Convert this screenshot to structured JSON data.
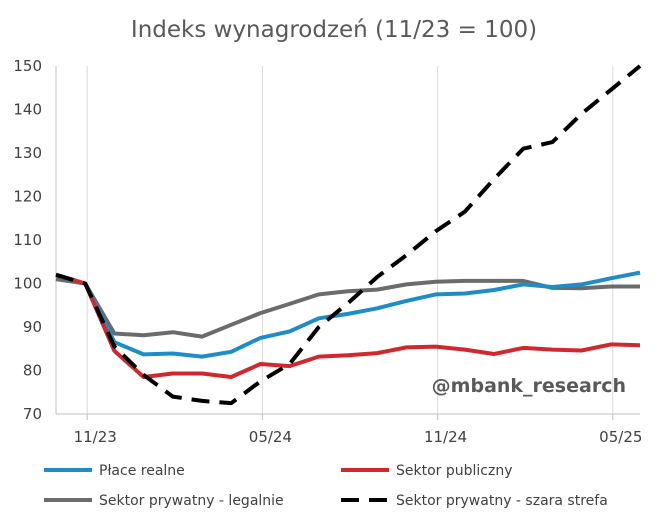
{
  "chart_data": {
    "type": "line",
    "title": "Indeks wynagrodzeń (11/23 = 100)",
    "watermark": "@mbank_research",
    "xlabel": "",
    "ylabel": "",
    "ylim": [
      70,
      150
    ],
    "yticks": [
      70,
      80,
      90,
      100,
      110,
      120,
      130,
      140,
      150
    ],
    "x": [
      "10/23",
      "11/23",
      "12/23",
      "01/24",
      "02/24",
      "03/24",
      "04/24",
      "05/24",
      "06/24",
      "07/24",
      "08/24",
      "09/24",
      "10/24",
      "11/24",
      "12/24",
      "01/25",
      "02/25",
      "03/25",
      "04/25",
      "05/25",
      "06/25"
    ],
    "xtick_labels": [
      {
        "index": 1,
        "label": "11/23"
      },
      {
        "index": 7,
        "label": "05/24"
      },
      {
        "index": 13,
        "label": "11/24"
      },
      {
        "index": 19,
        "label": "05/25"
      }
    ],
    "legend_position": "bottom",
    "grid": "vertical",
    "series": [
      {
        "name": "Płace realne",
        "color": "#1F8DC5",
        "dash": "solid",
        "values": [
          102.0,
          100.0,
          86.5,
          83.7,
          83.9,
          83.2,
          84.3,
          87.5,
          89.0,
          92.0,
          93.0,
          94.3,
          96.0,
          97.5,
          97.7,
          98.5,
          99.8,
          99.2,
          99.8,
          101.2,
          102.5
        ]
      },
      {
        "name": "Sektor publiczny",
        "color": "#D1282D",
        "dash": "solid",
        "values": [
          102.0,
          100.0,
          84.5,
          78.5,
          79.3,
          79.3,
          78.5,
          81.5,
          81.0,
          83.2,
          83.5,
          84.0,
          85.3,
          85.5,
          84.8,
          83.8,
          85.2,
          84.8,
          84.6,
          86.0,
          85.8
        ]
      },
      {
        "name": "Sektor prywatny - legalnie",
        "color": "#6B6B6B",
        "dash": "solid",
        "values": [
          101.0,
          100.0,
          88.5,
          88.1,
          88.8,
          87.8,
          90.5,
          93.2,
          95.3,
          97.5,
          98.2,
          98.6,
          99.8,
          100.4,
          100.6,
          100.6,
          100.6,
          99.0,
          98.9,
          99.3,
          99.3
        ]
      },
      {
        "name": "Sektor prywatny - szara strefa",
        "color": "#000000",
        "dash": "dashed",
        "values": [
          102.0,
          100.0,
          85.5,
          79.0,
          74.0,
          73.0,
          72.5,
          77.5,
          81.5,
          90.0,
          95.5,
          101.5,
          106.5,
          112.0,
          116.5,
          124.0,
          131.0,
          132.5,
          139.0,
          144.5,
          150.0
        ]
      }
    ]
  }
}
